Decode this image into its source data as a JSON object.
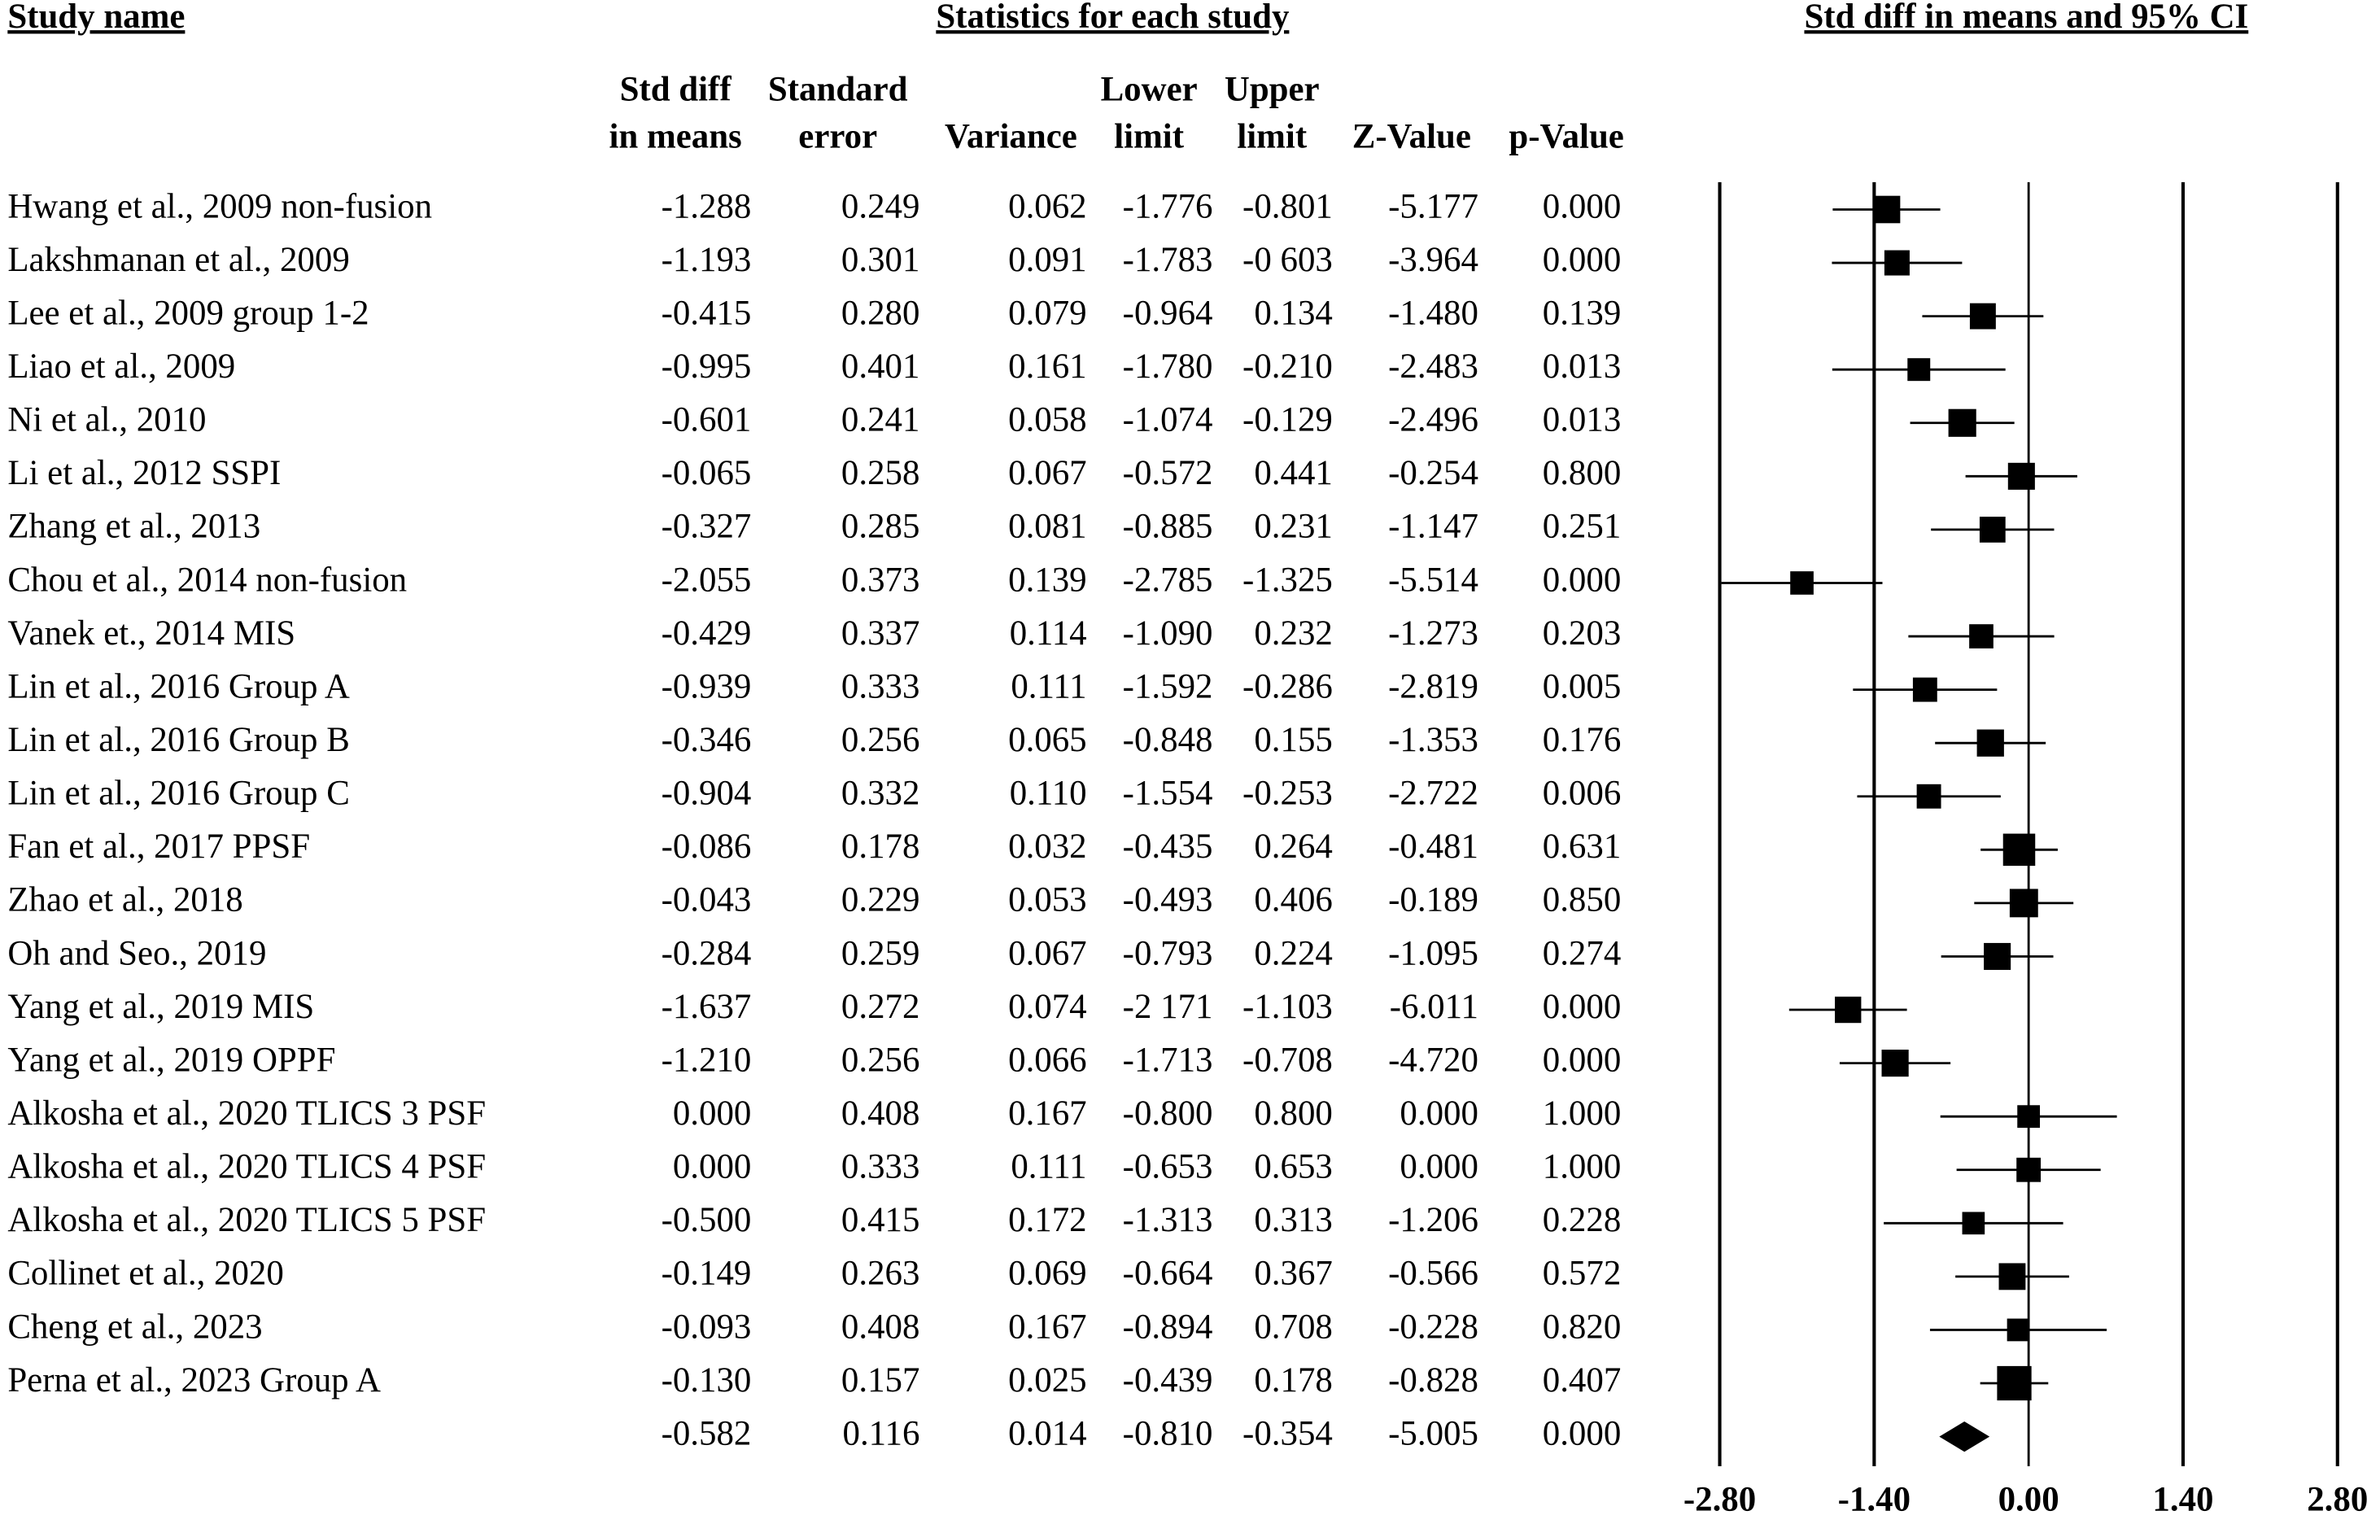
{
  "table": {
    "name_header": "Study name",
    "group_header": "Statistics for each study",
    "columns": [
      [
        "Std diff",
        "in means"
      ],
      [
        "Standard",
        "error"
      ],
      [
        "Variance"
      ],
      [
        "Lower",
        "limit"
      ],
      [
        "Upper",
        "limit"
      ],
      [
        "Z-Value"
      ],
      [
        "p-Value"
      ]
    ],
    "rows": [
      [
        "Hwang et al., 2009 non-fusion",
        "-1.288",
        "0.249",
        "0.062",
        "-1.776",
        "-0.801",
        "-5.177",
        "0.000"
      ],
      [
        "Lakshmanan et al., 2009",
        "-1.193",
        "0.301",
        "0.091",
        "-1.783",
        "-0 603",
        "-3.964",
        "0.000"
      ],
      [
        "Lee et al., 2009 group 1-2",
        "-0.415",
        "0.280",
        "0.079",
        "-0.964",
        "0.134",
        "-1.480",
        "0.139"
      ],
      [
        "Liao et al., 2009",
        "-0.995",
        "0.401",
        "0.161",
        "-1.780",
        "-0.210",
        "-2.483",
        "0.013"
      ],
      [
        "Ni et al., 2010",
        "-0.601",
        "0.241",
        "0.058",
        "-1.074",
        "-0.129",
        "-2.496",
        "0.013"
      ],
      [
        "Li et al., 2012 SSPI",
        "-0.065",
        "0.258",
        "0.067",
        "-0.572",
        "0.441",
        "-0.254",
        "0.800"
      ],
      [
        "Zhang et al., 2013",
        "-0.327",
        "0.285",
        "0.081",
        "-0.885",
        "0.231",
        "-1.147",
        "0.251"
      ],
      [
        "Chou et al., 2014 non-fusion",
        "-2.055",
        "0.373",
        "0.139",
        "-2.785",
        "-1.325",
        "-5.514",
        "0.000"
      ],
      [
        "Vanek et., 2014 MIS",
        "-0.429",
        "0.337",
        "0.114",
        "-1.090",
        "0.232",
        "-1.273",
        "0.203"
      ],
      [
        "Lin et al., 2016 Group A",
        "-0.939",
        "0.333",
        "0.111",
        "-1.592",
        "-0.286",
        "-2.819",
        "0.005"
      ],
      [
        "Lin et al., 2016 Group B",
        "-0.346",
        "0.256",
        "0.065",
        "-0.848",
        "0.155",
        "-1.353",
        "0.176"
      ],
      [
        "Lin et al., 2016 Group C",
        "-0.904",
        "0.332",
        "0.110",
        "-1.554",
        "-0.253",
        "-2.722",
        "0.006"
      ],
      [
        "Fan et al., 2017 PPSF",
        "-0.086",
        "0.178",
        "0.032",
        "-0.435",
        "0.264",
        "-0.481",
        "0.631"
      ],
      [
        "Zhao et al., 2018",
        "-0.043",
        "0.229",
        "0.053",
        "-0.493",
        "0.406",
        "-0.189",
        "0.850"
      ],
      [
        "Oh and Seo., 2019",
        "-0.284",
        "0.259",
        "0.067",
        "-0.793",
        "0.224",
        "-1.095",
        "0.274"
      ],
      [
        "Yang et al., 2019 MIS",
        "-1.637",
        "0.272",
        "0.074",
        "-2 171",
        "-1.103",
        "-6.011",
        "0.000"
      ],
      [
        "Yang et al., 2019 OPPF",
        "-1.210",
        "0.256",
        "0.066",
        "-1.713",
        "-0.708",
        "-4.720",
        "0.000"
      ],
      [
        "Alkosha et al., 2020 TLICS 3 PSF",
        "0.000",
        "0.408",
        "0.167",
        "-0.800",
        "0.800",
        "0.000",
        "1.000"
      ],
      [
        "Alkosha et al., 2020 TLICS 4 PSF",
        "0.000",
        "0.333",
        "0.111",
        "-0.653",
        "0.653",
        "0.000",
        "1.000"
      ],
      [
        "Alkosha et al., 2020 TLICS 5 PSF",
        "-0.500",
        "0.415",
        "0.172",
        "-1.313",
        "0.313",
        "-1.206",
        "0.228"
      ],
      [
        "Collinet et al., 2020",
        "-0.149",
        "0.263",
        "0.069",
        "-0.664",
        "0.367",
        "-0.566",
        "0.572"
      ],
      [
        "Cheng et al., 2023",
        "-0.093",
        "0.408",
        "0.167",
        "-0.894",
        "0.708",
        "-0.228",
        "0.820"
      ],
      [
        "Perna et al., 2023 Group A",
        "-0.130",
        "0.157",
        "0.025",
        "-0.439",
        "0.178",
        "-0.828",
        "0.407"
      ],
      [
        null,
        "-0.582",
        "0.116",
        "0.014",
        "-0.810",
        "-0.354",
        "-5.005",
        "0.000"
      ]
    ]
  },
  "chart_data": {
    "type": "forest",
    "title": "Std diff in means and 95% CI",
    "values": [
      -1.288,
      -1.193,
      -0.415,
      -0.995,
      -0.601,
      -0.065,
      -0.327,
      -2.055,
      -0.429,
      -0.939,
      -0.346,
      -0.904,
      -0.086,
      -0.043,
      -0.284,
      -1.637,
      -1.21,
      0.0,
      0.0,
      -0.5,
      -0.149,
      -0.093,
      -0.13
    ],
    "lower": [
      -1.776,
      -1.783,
      -0.964,
      -1.78,
      -1.074,
      -0.572,
      -0.885,
      -2.785,
      -1.09,
      -1.592,
      -0.848,
      -1.554,
      -0.435,
      -0.493,
      -0.793,
      -2.171,
      -1.713,
      -0.8,
      -0.653,
      -1.313,
      -0.664,
      -0.894,
      -0.439
    ],
    "upper": [
      -0.801,
      -0.603,
      0.134,
      -0.21,
      -0.129,
      0.441,
      0.231,
      -1.325,
      0.232,
      -0.286,
      0.155,
      -0.253,
      0.264,
      0.406,
      0.224,
      -1.103,
      -0.708,
      0.8,
      0.653,
      0.313,
      0.367,
      0.708,
      0.178
    ],
    "variance": [
      0.062,
      0.091,
      0.079,
      0.161,
      0.058,
      0.067,
      0.081,
      0.139,
      0.114,
      0.111,
      0.065,
      0.11,
      0.032,
      0.053,
      0.067,
      0.074,
      0.066,
      0.167,
      0.111,
      0.172,
      0.069,
      0.167,
      0.025
    ],
    "summary": {
      "value": -0.582,
      "lower": -0.81,
      "upper": -0.354
    },
    "xlim": [
      -2.8,
      2.8
    ],
    "xticks": [
      {
        "value": -2.8,
        "label": "-2.80"
      },
      {
        "value": -1.4,
        "label": "-1.40"
      },
      {
        "value": 0,
        "label": "0.00"
      },
      {
        "value": 1.4,
        "label": "1.40"
      },
      {
        "value": 2.8,
        "label": "2.80"
      }
    ],
    "color": "#000000"
  }
}
